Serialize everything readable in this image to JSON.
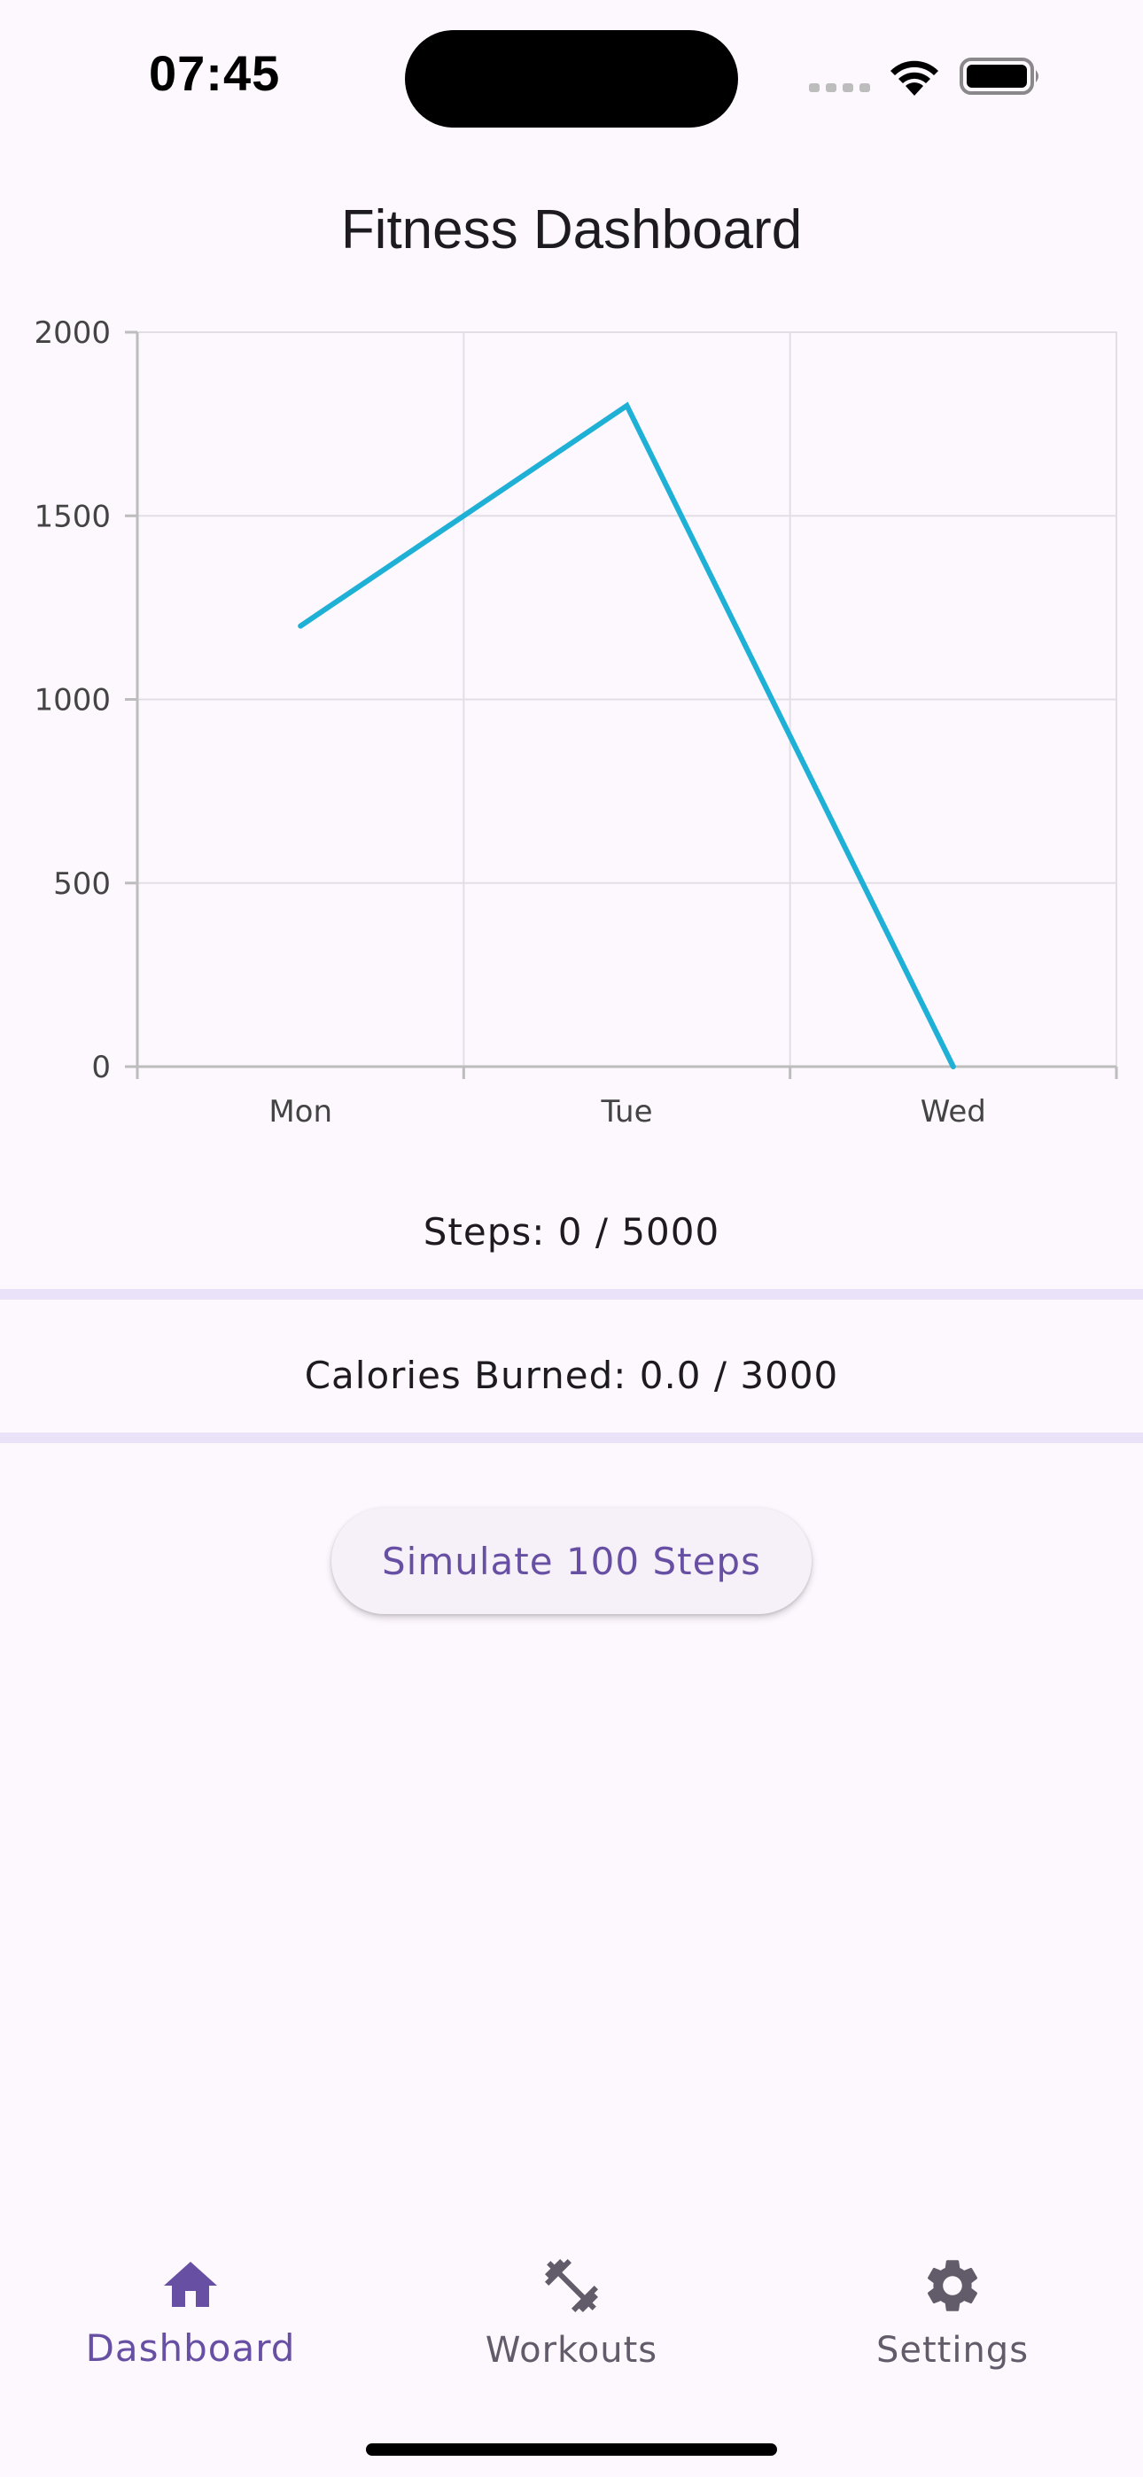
{
  "status_bar": {
    "time": "07:45"
  },
  "header": {
    "title": "Fitness Dashboard"
  },
  "chart_data": {
    "type": "line",
    "categories": [
      "Mon",
      "Tue",
      "Wed"
    ],
    "series": [
      {
        "values": [
          1200,
          1800,
          0
        ],
        "color": "#1fb0d6"
      }
    ],
    "ylim": [
      0,
      2000
    ],
    "yticks": [
      "0",
      "500",
      "1000",
      "1500",
      "2000"
    ],
    "grid": true
  },
  "stats": {
    "steps": "Steps: 0 / 5000",
    "calories": "Calories Burned: 0.0 / 3000"
  },
  "actions": {
    "simulate_label": "Simulate 100 Steps"
  },
  "bottom_nav": {
    "items": [
      {
        "label": "Dashboard",
        "icon": "home-icon",
        "active": true
      },
      {
        "label": "Workouts",
        "icon": "dumbbell-icon",
        "active": false
      },
      {
        "label": "Settings",
        "icon": "gear-icon",
        "active": false
      }
    ],
    "active_color": "#6750a4",
    "inactive_color": "#625b6a"
  }
}
